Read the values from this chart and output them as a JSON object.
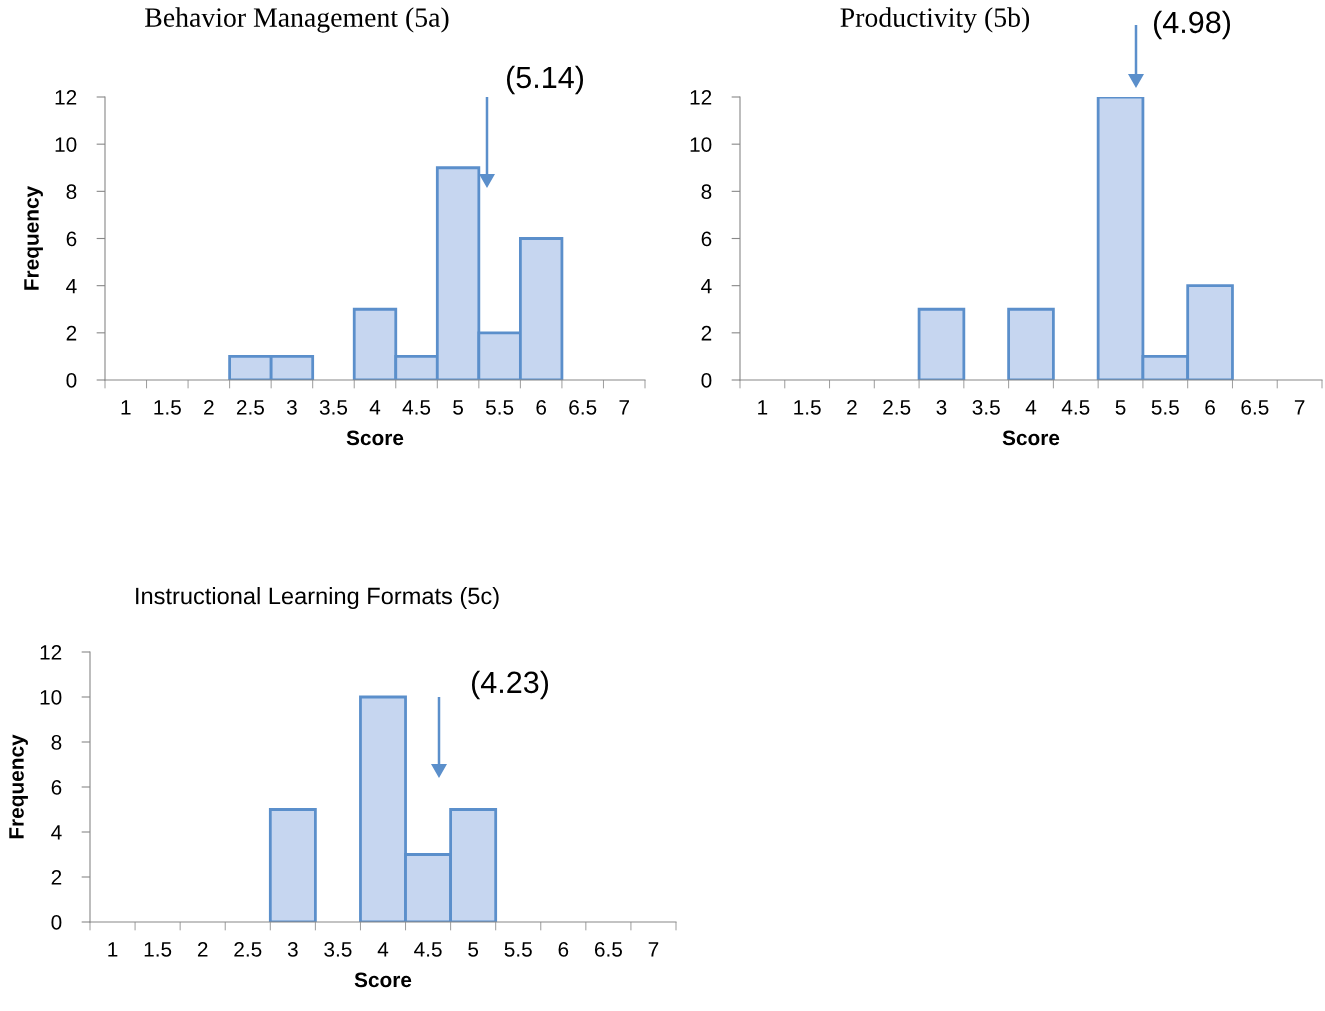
{
  "chart_data": [
    {
      "type": "bar",
      "title": "Behavior Management (5a)",
      "xlabel": "Score",
      "ylabel": "Frequency",
      "categories": [
        "1",
        "1.5",
        "2",
        "2.5",
        "3",
        "3.5",
        "4",
        "4.5",
        "5",
        "5.5",
        "6",
        "6.5",
        "7"
      ],
      "values": [
        0,
        0,
        0,
        1,
        1,
        0,
        3,
        1,
        9,
        2,
        6,
        0,
        0
      ],
      "color": "#c6d6f0",
      "ylim": [
        0,
        12
      ],
      "yticks": [
        0,
        2,
        4,
        6,
        8,
        10,
        12
      ],
      "annotations": [
        "(5.14)"
      ]
    },
    {
      "type": "bar",
      "title": "Productivity (5b)",
      "xlabel": "Score",
      "categories": [
        "1",
        "1.5",
        "2",
        "2.5",
        "3",
        "3.5",
        "4",
        "4.5",
        "5",
        "5.5",
        "6",
        "6.5",
        "7"
      ],
      "values": [
        0,
        0,
        0,
        0,
        3,
        0,
        3,
        0,
        12,
        1,
        4,
        0,
        0
      ],
      "color": "#c6d6f0",
      "ylim": [
        0,
        12
      ],
      "yticks": [
        0,
        2,
        4,
        6,
        8,
        10,
        12
      ],
      "annotations": [
        "(4.98)"
      ]
    },
    {
      "type": "bar",
      "title": "Instructional Learning Formats (5c)",
      "xlabel": "Score",
      "ylabel": "Frequency",
      "categories": [
        "1",
        "1.5",
        "2",
        "2.5",
        "3",
        "3.5",
        "4",
        "4.5",
        "5",
        "5.5",
        "6",
        "6.5",
        "7"
      ],
      "values": [
        0,
        0,
        0,
        0,
        5,
        0,
        10,
        3,
        5,
        0,
        0,
        0,
        0
      ],
      "color": "#c6d6f0",
      "ylim": [
        0,
        12
      ],
      "yticks": [
        0,
        2,
        4,
        6,
        8,
        10,
        12
      ],
      "annotations": [
        "(4.23)"
      ]
    }
  ]
}
